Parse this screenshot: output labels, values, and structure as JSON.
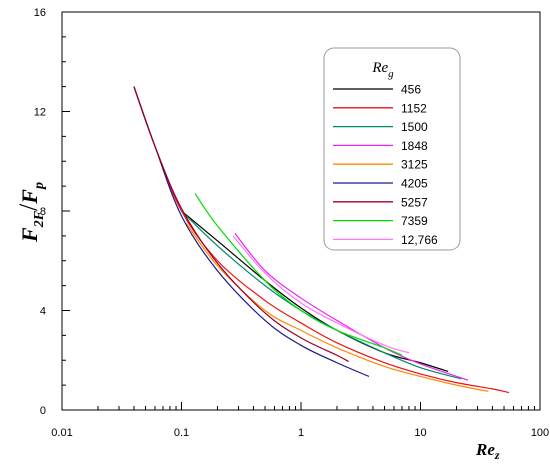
{
  "chart_data": {
    "type": "line",
    "xscale": "log",
    "xlim": [
      0.01,
      100
    ],
    "ylim": [
      0,
      16
    ],
    "x_ticks": [
      0.01,
      0.1,
      1,
      10,
      100
    ],
    "x_tick_labels": [
      "0.01",
      "0.1",
      "1",
      "10",
      "100"
    ],
    "y_ticks": [
      0,
      4,
      8,
      12,
      16
    ],
    "y_tick_labels": [
      "0",
      "4",
      "8",
      "12",
      "16"
    ],
    "xlabel": {
      "main": "Re",
      "sub": "z"
    },
    "ylabel": {
      "num_main": "F",
      "num_sub": "2F",
      "den_main": "F",
      "den_sub": "p"
    },
    "legend": {
      "title_main": "Re",
      "title_sub": "g",
      "position": "top-right"
    },
    "grid": false,
    "series": [
      {
        "name": "456",
        "color": "#000000",
        "x": [
          0.1,
          0.2,
          0.5,
          1,
          2,
          5,
          10,
          17
        ],
        "y": [
          8.0,
          6.8,
          5.2,
          4.1,
          3.2,
          2.3,
          1.9,
          1.55
        ]
      },
      {
        "name": "1152",
        "color": "#ee1111",
        "x": [
          0.04,
          0.06,
          0.1,
          0.2,
          0.5,
          1,
          2,
          5,
          10,
          20,
          40,
          55
        ],
        "y": [
          13.0,
          10.6,
          8.0,
          6.0,
          4.4,
          3.5,
          2.7,
          1.9,
          1.45,
          1.1,
          0.85,
          0.7
        ]
      },
      {
        "name": "1500",
        "color": "#008a6a",
        "x": [
          0.1,
          0.2,
          0.5,
          1,
          2,
          5,
          10,
          22
        ],
        "y": [
          8.0,
          6.6,
          5.0,
          4.0,
          3.2,
          2.3,
          1.7,
          1.25
        ]
      },
      {
        "name": "1848",
        "color": "#ee22ee",
        "x": [
          0.28,
          0.5,
          1,
          2,
          5,
          10,
          25
        ],
        "y": [
          7.1,
          5.6,
          4.5,
          3.6,
          2.5,
          1.85,
          1.2
        ]
      },
      {
        "name": "3125",
        "color": "#ff8800",
        "x": [
          0.11,
          0.2,
          0.5,
          1,
          2,
          5,
          10,
          20,
          37
        ],
        "y": [
          7.5,
          5.8,
          4.0,
          3.2,
          2.5,
          1.75,
          1.35,
          1.0,
          0.75
        ]
      },
      {
        "name": "4205",
        "color": "#1a1a88",
        "x": [
          0.04,
          0.06,
          0.1,
          0.2,
          0.5,
          1,
          2,
          3.7
        ],
        "y": [
          13.0,
          10.6,
          7.8,
          5.6,
          3.6,
          2.6,
          1.9,
          1.35
        ]
      },
      {
        "name": "5257",
        "color": "#990022",
        "x": [
          0.04,
          0.06,
          0.1,
          0.2,
          0.5,
          1,
          2,
          2.5
        ],
        "y": [
          13.0,
          10.6,
          8.1,
          5.9,
          3.9,
          2.9,
          2.2,
          1.95
        ]
      },
      {
        "name": "7359",
        "color": "#00dd00",
        "x": [
          0.13,
          0.2,
          0.5,
          1,
          2,
          5,
          7
        ],
        "y": [
          8.7,
          7.4,
          5.2,
          4.0,
          3.2,
          2.5,
          2.2
        ]
      },
      {
        "name": "12,766",
        "color": "#ff77ff",
        "x": [
          0.27,
          0.5,
          1,
          2,
          5,
          8
        ],
        "y": [
          7.0,
          5.5,
          4.3,
          3.5,
          2.6,
          2.3
        ]
      }
    ]
  }
}
